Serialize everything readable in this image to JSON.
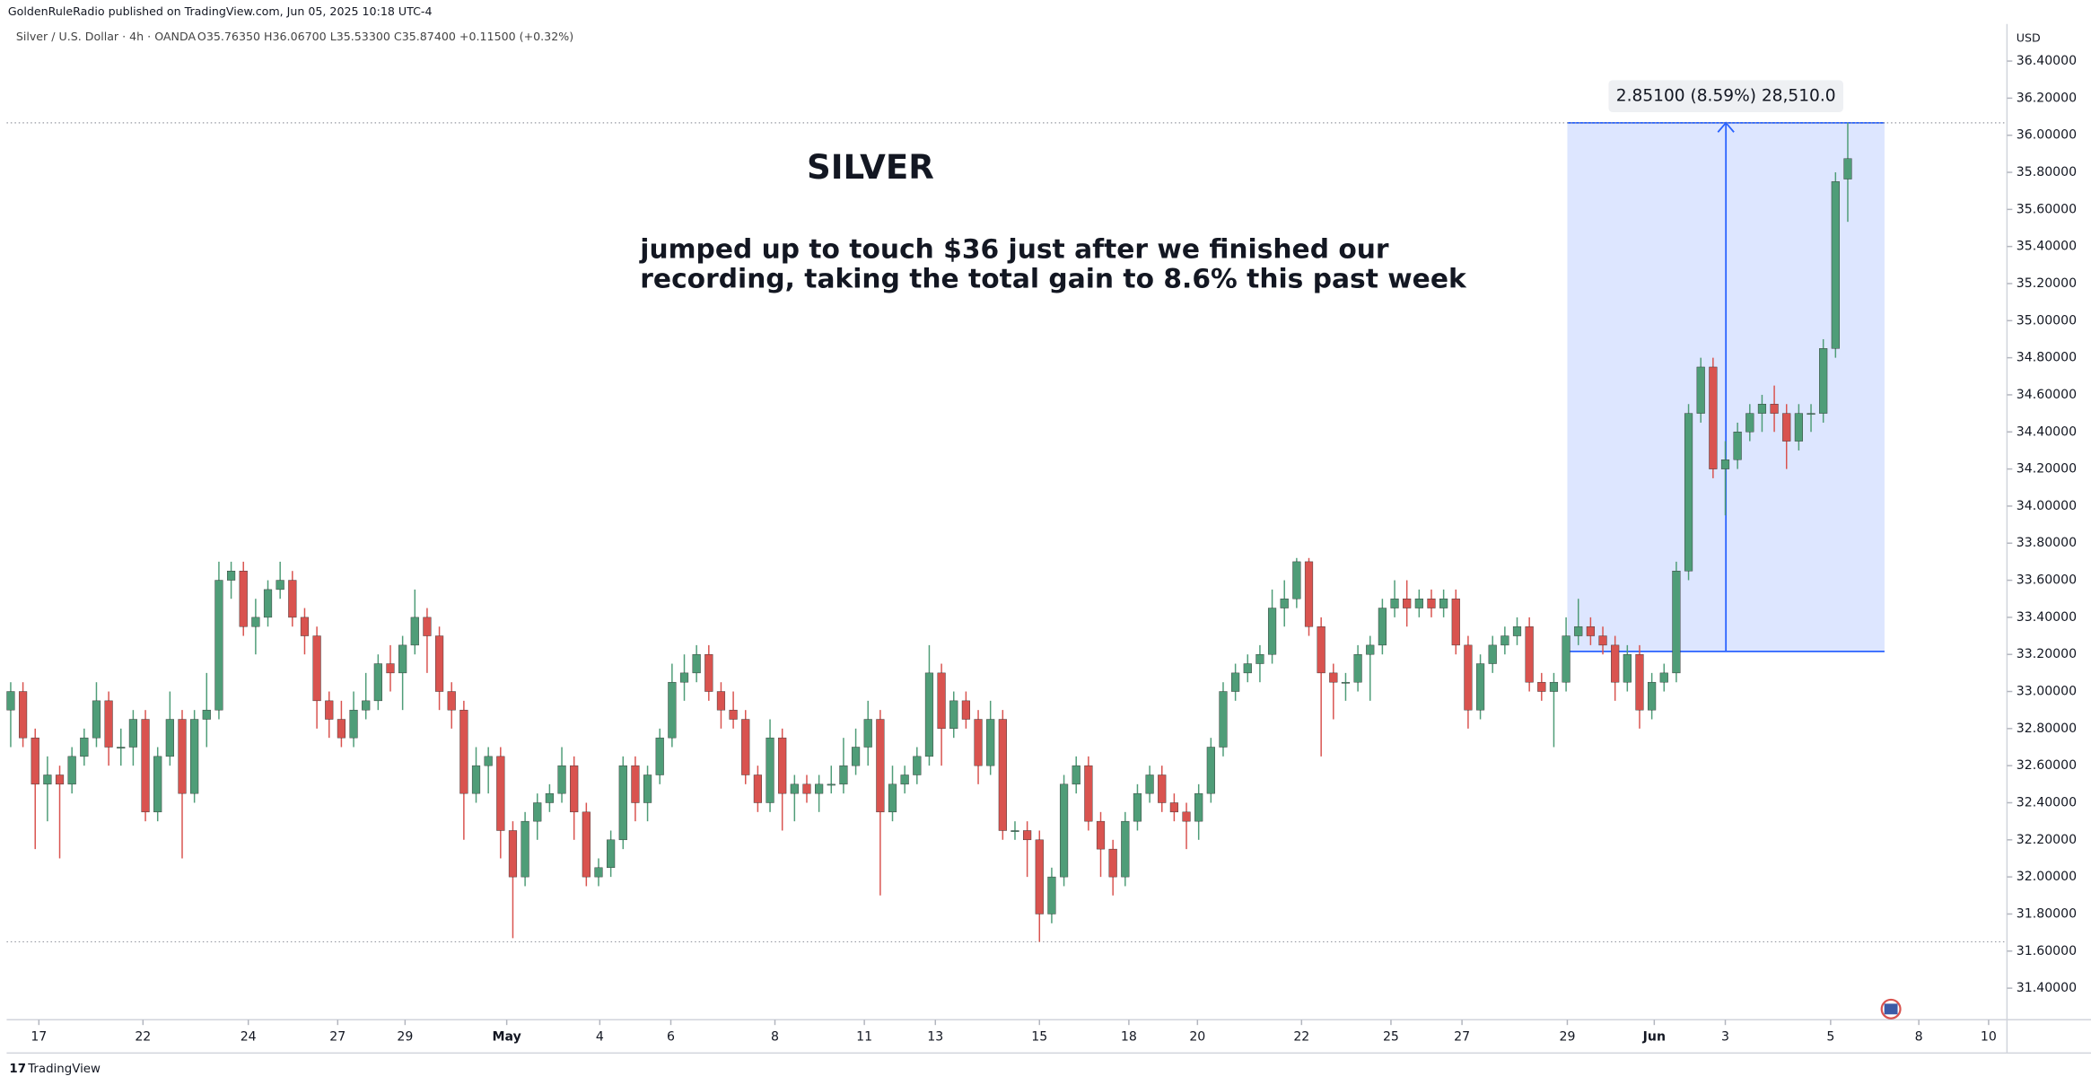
{
  "chart_data": {
    "type": "candlestick",
    "published": "GoldenRuleRadio published on TradingView.com, Jun 05, 2025 10:18 UTC-4",
    "symbol": "Silver / U.S. Dollar · 4h · OANDA",
    "ohlc_readout": "O35.76350 H36.06700 L35.53300 C35.87400 +0.11500 (+0.32%)",
    "currency": "USD",
    "title": "SILVER",
    "note": [
      "jumped up to touch $36 just after we finished our",
      "recording, taking the total gain to 8.6% this past week"
    ],
    "brand": "TradingView",
    "up_color": "#4f9d78",
    "down_color": "#d9534f",
    "ylim": [
      31.23,
      36.6
    ],
    "yticks": [
      {
        "value": 31.4,
        "label": "31.40000"
      },
      {
        "value": 31.6,
        "label": "31.60000"
      },
      {
        "value": 31.8,
        "label": "31.80000"
      },
      {
        "value": 32,
        "label": "32.00000"
      },
      {
        "value": 32.2,
        "label": "32.20000"
      },
      {
        "value": 32.4,
        "label": "32.40000"
      },
      {
        "value": 32.6,
        "label": "32.60000"
      },
      {
        "value": 32.8,
        "label": "32.80000"
      },
      {
        "value": 33,
        "label": "33.00000"
      },
      {
        "value": 33.2,
        "label": "33.20000"
      },
      {
        "value": 33.4,
        "label": "33.40000"
      },
      {
        "value": 33.6,
        "label": "33.60000"
      },
      {
        "value": 33.8,
        "label": "33.80000"
      },
      {
        "value": 34,
        "label": "34.00000"
      },
      {
        "value": 34.2,
        "label": "34.20000"
      },
      {
        "value": 34.4,
        "label": "34.40000"
      },
      {
        "value": 34.6,
        "label": "34.60000"
      },
      {
        "value": 34.8,
        "label": "34.80000"
      },
      {
        "value": 35,
        "label": "35.00000"
      },
      {
        "value": 35.2,
        "label": "35.20000"
      },
      {
        "value": 35.4,
        "label": "35.40000"
      },
      {
        "value": 35.6,
        "label": "35.60000"
      },
      {
        "value": 35.8,
        "label": "35.80000"
      },
      {
        "value": 36,
        "label": "36.00000"
      },
      {
        "value": 36.2,
        "label": "36.20000"
      },
      {
        "value": 36.4,
        "label": "36.40000"
      }
    ],
    "xlim": [
      -0.33,
      163
    ],
    "xticks": [
      {
        "value": 2.3,
        "label": "17"
      },
      {
        "value": 10.8,
        "label": "22"
      },
      {
        "value": 19.4,
        "label": "24"
      },
      {
        "value": 26.7,
        "label": "27"
      },
      {
        "value": 32.2,
        "label": "29"
      },
      {
        "value": 40.5,
        "label": "May"
      },
      {
        "value": 48.1,
        "label": "4"
      },
      {
        "value": 53.9,
        "label": "6"
      },
      {
        "value": 62.4,
        "label": "8"
      },
      {
        "value": 69.7,
        "label": "11"
      },
      {
        "value": 75.5,
        "label": "13"
      },
      {
        "value": 84.0,
        "label": "15"
      },
      {
        "value": 91.3,
        "label": "18"
      },
      {
        "value": 96.9,
        "label": "20"
      },
      {
        "value": 105.4,
        "label": "22"
      },
      {
        "value": 112.7,
        "label": "25"
      },
      {
        "value": 118.5,
        "label": "27"
      },
      {
        "value": 127.1,
        "label": "29"
      },
      {
        "value": 134.2,
        "label": "Jun"
      },
      {
        "value": 140.0,
        "label": "3"
      },
      {
        "value": 148.6,
        "label": "5"
      },
      {
        "value": 155.8,
        "label": "8"
      },
      {
        "value": 161.5,
        "label": "10"
      }
    ],
    "range_lines": [
      36.067,
      31.65
    ],
    "measure": {
      "label": "2.85100 (8.59%) 28,510.0",
      "from": 33.216,
      "to": 36.067,
      "start": 127.1,
      "end": 153
    },
    "ohlc": [
      [
        32.9,
        33.05,
        32.7,
        33.0
      ],
      [
        33.0,
        33.05,
        32.7,
        32.75
      ],
      [
        32.75,
        32.8,
        32.15,
        32.5
      ],
      [
        32.5,
        32.65,
        32.3,
        32.55
      ],
      [
        32.55,
        32.6,
        32.1,
        32.5
      ],
      [
        32.5,
        32.7,
        32.45,
        32.65
      ],
      [
        32.65,
        32.8,
        32.6,
        32.75
      ],
      [
        32.75,
        33.05,
        32.7,
        32.95
      ],
      [
        32.95,
        33.0,
        32.6,
        32.7
      ],
      [
        32.7,
        32.8,
        32.6,
        32.7
      ],
      [
        32.7,
        32.9,
        32.6,
        32.85
      ],
      [
        32.85,
        32.9,
        32.3,
        32.35
      ],
      [
        32.35,
        32.7,
        32.3,
        32.65
      ],
      [
        32.65,
        33.0,
        32.6,
        32.85
      ],
      [
        32.85,
        32.9,
        32.1,
        32.45
      ],
      [
        32.45,
        32.9,
        32.4,
        32.85
      ],
      [
        32.85,
        33.1,
        32.7,
        32.9
      ],
      [
        32.9,
        33.7,
        32.85,
        33.6
      ],
      [
        33.6,
        33.7,
        33.5,
        33.65
      ],
      [
        33.65,
        33.7,
        33.3,
        33.35
      ],
      [
        33.35,
        33.5,
        33.2,
        33.4
      ],
      [
        33.4,
        33.6,
        33.35,
        33.55
      ],
      [
        33.55,
        33.7,
        33.5,
        33.6
      ],
      [
        33.6,
        33.65,
        33.35,
        33.4
      ],
      [
        33.4,
        33.45,
        33.2,
        33.3
      ],
      [
        33.3,
        33.35,
        32.8,
        32.95
      ],
      [
        32.95,
        33.0,
        32.75,
        32.85
      ],
      [
        32.85,
        32.95,
        32.7,
        32.75
      ],
      [
        32.75,
        33.0,
        32.7,
        32.9
      ],
      [
        32.9,
        33.1,
        32.85,
        32.95
      ],
      [
        32.95,
        33.2,
        32.9,
        33.15
      ],
      [
        33.15,
        33.25,
        33.0,
        33.1
      ],
      [
        33.1,
        33.3,
        32.9,
        33.25
      ],
      [
        33.25,
        33.55,
        33.2,
        33.4
      ],
      [
        33.4,
        33.45,
        33.1,
        33.3
      ],
      [
        33.3,
        33.35,
        32.9,
        33.0
      ],
      [
        33.0,
        33.05,
        32.8,
        32.9
      ],
      [
        32.9,
        32.95,
        32.2,
        32.45
      ],
      [
        32.45,
        32.7,
        32.4,
        32.6
      ],
      [
        32.6,
        32.7,
        32.45,
        32.65
      ],
      [
        32.65,
        32.7,
        32.1,
        32.25
      ],
      [
        32.25,
        32.3,
        31.67,
        32.0
      ],
      [
        32.0,
        32.35,
        31.95,
        32.3
      ],
      [
        32.3,
        32.45,
        32.2,
        32.4
      ],
      [
        32.4,
        32.5,
        32.35,
        32.45
      ],
      [
        32.45,
        32.7,
        32.4,
        32.6
      ],
      [
        32.6,
        32.65,
        32.2,
        32.35
      ],
      [
        32.35,
        32.4,
        31.95,
        32.0
      ],
      [
        32.0,
        32.1,
        31.95,
        32.05
      ],
      [
        32.05,
        32.25,
        32.0,
        32.2
      ],
      [
        32.2,
        32.65,
        32.15,
        32.6
      ],
      [
        32.6,
        32.65,
        32.3,
        32.4
      ],
      [
        32.4,
        32.6,
        32.3,
        32.55
      ],
      [
        32.55,
        32.8,
        32.5,
        32.75
      ],
      [
        32.75,
        33.15,
        32.7,
        33.05
      ],
      [
        33.05,
        33.2,
        32.95,
        33.1
      ],
      [
        33.1,
        33.25,
        33.05,
        33.2
      ],
      [
        33.2,
        33.25,
        32.95,
        33.0
      ],
      [
        33.0,
        33.05,
        32.8,
        32.9
      ],
      [
        32.9,
        33.0,
        32.8,
        32.85
      ],
      [
        32.85,
        32.9,
        32.5,
        32.55
      ],
      [
        32.55,
        32.6,
        32.35,
        32.4
      ],
      [
        32.4,
        32.85,
        32.35,
        32.75
      ],
      [
        32.75,
        32.8,
        32.25,
        32.45
      ],
      [
        32.45,
        32.55,
        32.3,
        32.5
      ],
      [
        32.5,
        32.55,
        32.4,
        32.45
      ],
      [
        32.45,
        32.55,
        32.35,
        32.5
      ],
      [
        32.5,
        32.6,
        32.45,
        32.5
      ],
      [
        32.5,
        32.75,
        32.45,
        32.6
      ],
      [
        32.6,
        32.8,
        32.55,
        32.7
      ],
      [
        32.7,
        32.95,
        32.6,
        32.85
      ],
      [
        32.85,
        32.9,
        31.9,
        32.35
      ],
      [
        32.35,
        32.6,
        32.3,
        32.5
      ],
      [
        32.5,
        32.6,
        32.45,
        32.55
      ],
      [
        32.55,
        32.7,
        32.5,
        32.65
      ],
      [
        32.65,
        33.25,
        32.6,
        33.1
      ],
      [
        33.1,
        33.15,
        32.6,
        32.8
      ],
      [
        32.8,
        33.0,
        32.75,
        32.95
      ],
      [
        32.95,
        33.0,
        32.8,
        32.85
      ],
      [
        32.85,
        32.9,
        32.5,
        32.6
      ],
      [
        32.6,
        32.95,
        32.55,
        32.85
      ],
      [
        32.85,
        32.9,
        32.2,
        32.25
      ],
      [
        32.25,
        32.3,
        32.2,
        32.25
      ],
      [
        32.25,
        32.3,
        32.0,
        32.2
      ],
      [
        32.2,
        32.25,
        31.65,
        31.8
      ],
      [
        31.8,
        32.05,
        31.75,
        32.0
      ],
      [
        32.0,
        32.55,
        31.95,
        32.5
      ],
      [
        32.5,
        32.65,
        32.45,
        32.6
      ],
      [
        32.6,
        32.65,
        32.25,
        32.3
      ],
      [
        32.3,
        32.35,
        32.0,
        32.15
      ],
      [
        32.15,
        32.2,
        31.9,
        32.0
      ],
      [
        32.0,
        32.35,
        31.95,
        32.3
      ],
      [
        32.3,
        32.5,
        32.25,
        32.45
      ],
      [
        32.45,
        32.6,
        32.4,
        32.55
      ],
      [
        32.55,
        32.6,
        32.35,
        32.4
      ],
      [
        32.4,
        32.45,
        32.3,
        32.35
      ],
      [
        32.35,
        32.4,
        32.15,
        32.3
      ],
      [
        32.3,
        32.5,
        32.2,
        32.45
      ],
      [
        32.45,
        32.75,
        32.4,
        32.7
      ],
      [
        32.7,
        33.05,
        32.65,
        33.0
      ],
      [
        33.0,
        33.15,
        32.95,
        33.1
      ],
      [
        33.1,
        33.2,
        33.05,
        33.15
      ],
      [
        33.15,
        33.25,
        33.05,
        33.2
      ],
      [
        33.2,
        33.55,
        33.15,
        33.45
      ],
      [
        33.45,
        33.6,
        33.35,
        33.5
      ],
      [
        33.5,
        33.72,
        33.45,
        33.7
      ],
      [
        33.7,
        33.72,
        33.3,
        33.35
      ],
      [
        33.35,
        33.4,
        32.65,
        33.1
      ],
      [
        33.1,
        33.15,
        32.85,
        33.05
      ],
      [
        33.05,
        33.1,
        32.95,
        33.05
      ],
      [
        33.05,
        33.25,
        33.0,
        33.2
      ],
      [
        33.2,
        33.3,
        32.95,
        33.25
      ],
      [
        33.25,
        33.5,
        33.2,
        33.45
      ],
      [
        33.45,
        33.6,
        33.4,
        33.5
      ],
      [
        33.5,
        33.6,
        33.35,
        33.45
      ],
      [
        33.45,
        33.55,
        33.4,
        33.5
      ],
      [
        33.5,
        33.55,
        33.4,
        33.45
      ],
      [
        33.45,
        33.55,
        33.4,
        33.5
      ],
      [
        33.5,
        33.55,
        33.2,
        33.25
      ],
      [
        33.25,
        33.3,
        32.8,
        32.9
      ],
      [
        32.9,
        33.2,
        32.85,
        33.15
      ],
      [
        33.15,
        33.3,
        33.1,
        33.25
      ],
      [
        33.25,
        33.35,
        33.2,
        33.3
      ],
      [
        33.3,
        33.4,
        33.25,
        33.35
      ],
      [
        33.35,
        33.4,
        33.0,
        33.05
      ],
      [
        33.05,
        33.1,
        32.95,
        33.0
      ],
      [
        33.0,
        33.1,
        32.7,
        33.05
      ],
      [
        33.05,
        33.4,
        33.0,
        33.3
      ],
      [
        33.3,
        33.5,
        33.25,
        33.35
      ],
      [
        33.35,
        33.4,
        33.25,
        33.3
      ],
      [
        33.3,
        33.35,
        33.2,
        33.25
      ],
      [
        33.25,
        33.3,
        32.95,
        33.05
      ],
      [
        33.05,
        33.25,
        33.0,
        33.2
      ],
      [
        33.2,
        33.25,
        32.8,
        32.9
      ],
      [
        32.9,
        33.1,
        32.85,
        33.05
      ],
      [
        33.05,
        33.15,
        33.0,
        33.1
      ],
      [
        33.1,
        33.7,
        33.05,
        33.65
      ],
      [
        33.65,
        34.55,
        33.6,
        34.5
      ],
      [
        34.5,
        34.8,
        34.45,
        34.75
      ],
      [
        34.75,
        34.8,
        34.15,
        34.2
      ],
      [
        34.2,
        34.35,
        33.95,
        34.25
      ],
      [
        34.25,
        34.45,
        34.2,
        34.4
      ],
      [
        34.4,
        34.55,
        34.35,
        34.5
      ],
      [
        34.5,
        34.6,
        34.4,
        34.55
      ],
      [
        34.55,
        34.65,
        34.4,
        34.5
      ],
      [
        34.5,
        34.55,
        34.2,
        34.35
      ],
      [
        34.35,
        34.55,
        34.3,
        34.5
      ],
      [
        34.5,
        34.55,
        34.4,
        34.5
      ],
      [
        34.5,
        34.9,
        34.45,
        34.85
      ],
      [
        34.85,
        35.8,
        34.8,
        35.75
      ],
      [
        35.7635,
        36.067,
        35.533,
        35.874
      ]
    ]
  }
}
